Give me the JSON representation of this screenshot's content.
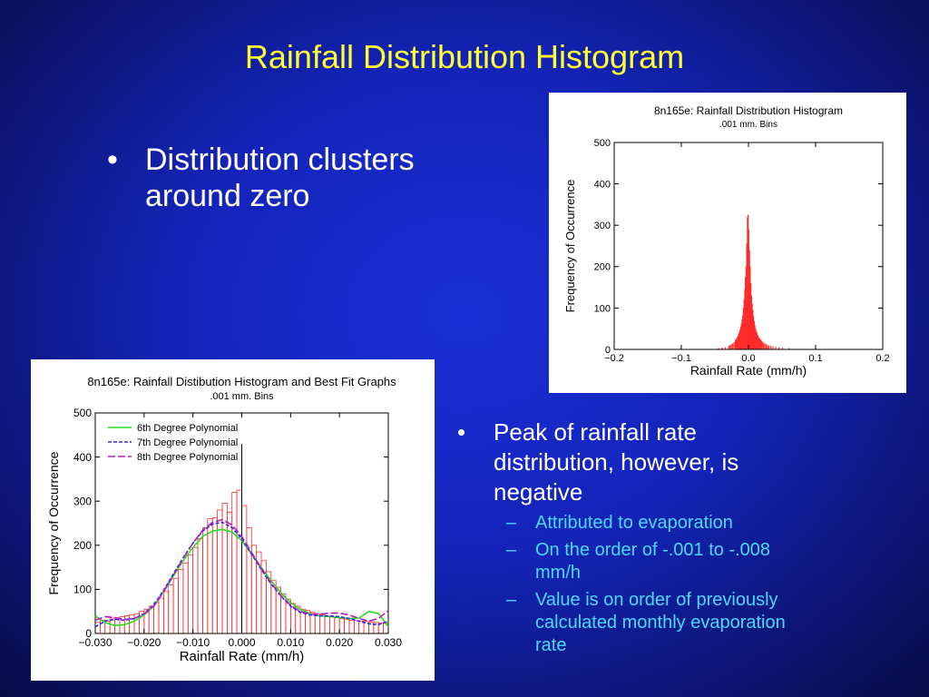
{
  "slide": {
    "title": "Rainfall Distribution Histogram",
    "bullet1": "Distribution clusters around zero",
    "bullet2": "Peak of rainfall rate distribution, however,  is negative",
    "sub_bullets": [
      "Attributed to evaporation",
      "On the order of -.001 to -.008 mm/h",
      "Value is on order of previously calculated monthly evaporation rate"
    ],
    "bullet_marker": "•",
    "sub_marker": "–"
  },
  "colors": {
    "background": "#1424b8",
    "title": "#ffff33",
    "sub_bullet": "#4dd9ff",
    "bars": "#ff2a2a",
    "poly6": "#22dd22",
    "poly7": "#2a2aee",
    "poly8": "#b020c0"
  },
  "chart_data": [
    {
      "type": "bar",
      "title": "8n165e: Rainfall Distribution Histogram",
      "subtitle": ".001 mm. Bins",
      "xlabel": "Rainfall Rate (mm/h)",
      "ylabel": "Frequency of Occurrence",
      "xlim": [
        -0.2,
        0.2
      ],
      "ylim": [
        0,
        500
      ],
      "xticks": [
        "-0.2",
        "-0.1",
        "0.0",
        "0.1",
        "0.2"
      ],
      "yticks": [
        "0",
        "100",
        "200",
        "300",
        "400",
        "500"
      ],
      "bin_width": 0.001,
      "bins": [
        [
          -0.045,
          3
        ],
        [
          -0.04,
          4
        ],
        [
          -0.035,
          5
        ],
        [
          -0.03,
          8
        ],
        [
          -0.028,
          10
        ],
        [
          -0.026,
          12
        ],
        [
          -0.024,
          14
        ],
        [
          -0.022,
          17
        ],
        [
          -0.02,
          22
        ],
        [
          -0.019,
          24
        ],
        [
          -0.018,
          26
        ],
        [
          -0.017,
          30
        ],
        [
          -0.016,
          32
        ],
        [
          -0.015,
          38
        ],
        [
          -0.014,
          42
        ],
        [
          -0.013,
          48
        ],
        [
          -0.012,
          55
        ],
        [
          -0.011,
          62
        ],
        [
          -0.01,
          72
        ],
        [
          -0.009,
          82
        ],
        [
          -0.008,
          100
        ],
        [
          -0.007,
          120
        ],
        [
          -0.006,
          145
        ],
        [
          -0.005,
          175
        ],
        [
          -0.004,
          200
        ],
        [
          -0.003,
          255
        ],
        [
          -0.002,
          320
        ],
        [
          -0.001,
          325
        ],
        [
          0.0,
          290
        ],
        [
          0.001,
          240
        ],
        [
          0.002,
          200
        ],
        [
          0.003,
          160
        ],
        [
          0.004,
          130
        ],
        [
          0.005,
          110
        ],
        [
          0.006,
          95
        ],
        [
          0.007,
          80
        ],
        [
          0.008,
          68
        ],
        [
          0.009,
          58
        ],
        [
          0.01,
          50
        ],
        [
          0.011,
          44
        ],
        [
          0.012,
          40
        ],
        [
          0.013,
          35
        ],
        [
          0.014,
          32
        ],
        [
          0.015,
          28
        ],
        [
          0.016,
          26
        ],
        [
          0.017,
          24
        ],
        [
          0.018,
          22
        ],
        [
          0.019,
          20
        ],
        [
          0.02,
          18
        ],
        [
          0.022,
          16
        ],
        [
          0.024,
          14
        ],
        [
          0.026,
          12
        ],
        [
          0.028,
          10
        ],
        [
          0.03,
          9
        ],
        [
          0.033,
          8
        ],
        [
          0.036,
          7
        ],
        [
          0.04,
          6
        ],
        [
          0.045,
          5
        ],
        [
          0.05,
          4
        ],
        [
          0.06,
          3
        ]
      ]
    },
    {
      "type": "bar",
      "title": "8n165e: Rainfall Distibution Histogram and Best Fit Graphs",
      "subtitle": ".001 mm. Bins",
      "xlabel": "Rainfall Rate (mm/h)",
      "ylabel": "Frequency of Occurrence",
      "xlim": [
        -0.03,
        0.03
      ],
      "ylim": [
        0,
        500
      ],
      "xticks": [
        "-0.030",
        "-0.020",
        "-0.010",
        "0.000",
        "0.010",
        "0.020",
        "0.030"
      ],
      "yticks": [
        "0",
        "100",
        "200",
        "300",
        "400",
        "500"
      ],
      "bin_width": 0.001,
      "bins": [
        [
          -0.03,
          25
        ],
        [
          -0.029,
          30
        ],
        [
          -0.028,
          28
        ],
        [
          -0.027,
          35
        ],
        [
          -0.026,
          32
        ],
        [
          -0.025,
          38
        ],
        [
          -0.024,
          40
        ],
        [
          -0.023,
          42
        ],
        [
          -0.022,
          45
        ],
        [
          -0.021,
          50
        ],
        [
          -0.02,
          55
        ],
        [
          -0.019,
          62
        ],
        [
          -0.018,
          70
        ],
        [
          -0.017,
          80
        ],
        [
          -0.016,
          95
        ],
        [
          -0.015,
          110
        ],
        [
          -0.014,
          125
        ],
        [
          -0.013,
          145
        ],
        [
          -0.012,
          160
        ],
        [
          -0.011,
          178
        ],
        [
          -0.01,
          195
        ],
        [
          -0.009,
          215
        ],
        [
          -0.008,
          240
        ],
        [
          -0.007,
          260
        ],
        [
          -0.006,
          262
        ],
        [
          -0.005,
          280
        ],
        [
          -0.004,
          295
        ],
        [
          -0.003,
          275
        ],
        [
          -0.002,
          320
        ],
        [
          -0.001,
          325
        ],
        [
          0.0,
          290
        ],
        [
          0.001,
          240
        ],
        [
          0.002,
          200
        ],
        [
          0.003,
          185
        ],
        [
          0.004,
          165
        ],
        [
          0.005,
          140
        ],
        [
          0.006,
          120
        ],
        [
          0.007,
          105
        ],
        [
          0.008,
          90
        ],
        [
          0.009,
          78
        ],
        [
          0.01,
          68
        ],
        [
          0.011,
          62
        ],
        [
          0.012,
          55
        ],
        [
          0.013,
          52
        ],
        [
          0.014,
          48
        ],
        [
          0.015,
          45
        ],
        [
          0.016,
          42
        ],
        [
          0.017,
          40
        ],
        [
          0.018,
          38
        ],
        [
          0.019,
          36
        ],
        [
          0.02,
          34
        ],
        [
          0.021,
          32
        ],
        [
          0.022,
          30
        ],
        [
          0.023,
          29
        ],
        [
          0.024,
          28
        ],
        [
          0.025,
          27
        ],
        [
          0.026,
          26
        ],
        [
          0.027,
          25
        ],
        [
          0.028,
          24
        ],
        [
          0.029,
          23
        ]
      ],
      "vertical_line_x": 0.0,
      "series": [
        {
          "name": "6th Degree Polynomial",
          "color": "#22dd22",
          "dash": "solid",
          "x": [
            -0.03,
            -0.028,
            -0.026,
            -0.024,
            -0.022,
            -0.02,
            -0.018,
            -0.016,
            -0.014,
            -0.012,
            -0.01,
            -0.008,
            -0.006,
            -0.004,
            -0.002,
            0.0,
            0.002,
            0.004,
            0.006,
            0.008,
            0.01,
            0.012,
            0.014,
            0.016,
            0.018,
            0.02,
            0.022,
            0.024,
            0.026,
            0.028,
            0.03
          ],
          "y": [
            40,
            25,
            18,
            20,
            28,
            42,
            62,
            95,
            130,
            165,
            195,
            220,
            232,
            236,
            230,
            210,
            180,
            150,
            120,
            92,
            70,
            55,
            45,
            40,
            38,
            36,
            34,
            35,
            50,
            45,
            15
          ]
        },
        {
          "name": "7th Degree Polynomial",
          "color": "#2a2aee",
          "dash": "dash",
          "x": [
            -0.03,
            -0.028,
            -0.026,
            -0.024,
            -0.022,
            -0.02,
            -0.018,
            -0.016,
            -0.014,
            -0.012,
            -0.01,
            -0.008,
            -0.006,
            -0.004,
            -0.002,
            0.0,
            0.002,
            0.004,
            0.006,
            0.008,
            0.01,
            0.012,
            0.014,
            0.016,
            0.018,
            0.02,
            0.022,
            0.024,
            0.026,
            0.028,
            0.03
          ],
          "y": [
            15,
            28,
            32,
            30,
            34,
            45,
            65,
            98,
            135,
            172,
            205,
            232,
            248,
            252,
            240,
            215,
            180,
            145,
            112,
            85,
            62,
            48,
            42,
            40,
            40,
            38,
            34,
            28,
            22,
            20,
            28
          ]
        },
        {
          "name": "8th Degree Polynomial",
          "color": "#b020c0",
          "dash": "longdash",
          "x": [
            -0.03,
            -0.028,
            -0.026,
            -0.024,
            -0.022,
            -0.02,
            -0.018,
            -0.016,
            -0.014,
            -0.012,
            -0.01,
            -0.008,
            -0.006,
            -0.004,
            -0.002,
            0.0,
            0.002,
            0.004,
            0.006,
            0.008,
            0.01,
            0.012,
            0.014,
            0.016,
            0.018,
            0.02,
            0.022,
            0.024,
            0.026,
            0.028,
            0.03
          ],
          "y": [
            30,
            38,
            36,
            32,
            34,
            44,
            62,
            95,
            132,
            170,
            205,
            234,
            252,
            258,
            246,
            220,
            184,
            148,
            114,
            86,
            64,
            50,
            44,
            44,
            46,
            46,
            42,
            34,
            28,
            34,
            52
          ]
        }
      ]
    }
  ]
}
